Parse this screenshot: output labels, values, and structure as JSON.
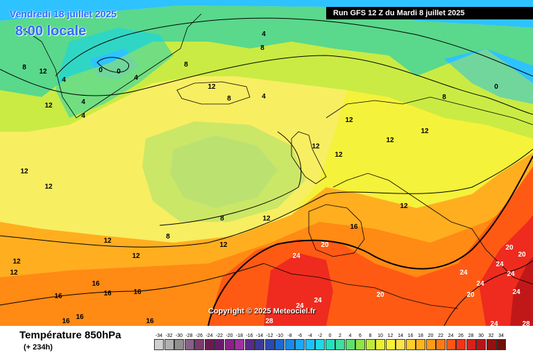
{
  "header": {
    "date": "Vendredi 18 juillet 2025",
    "time": "8:00 locale",
    "run": "Run GFS 12 Z du Mardi 8 juillet 2025"
  },
  "map": {
    "copyright": "Copyright © 2025 Meteociel.fr",
    "isotherm_labels": [
      "0",
      "0",
      "0",
      "4",
      "4",
      "4",
      "4",
      "4",
      "4",
      "8",
      "8",
      "8",
      "8",
      "8",
      "8",
      "8",
      "12",
      "12",
      "12",
      "12",
      "12",
      "12",
      "12",
      "12",
      "12",
      "12",
      "12",
      "12",
      "12",
      "12",
      "12",
      "12",
      "12",
      "16",
      "16",
      "16",
      "16",
      "16",
      "16",
      "16",
      "16",
      "20",
      "20",
      "20",
      "20",
      "20",
      "24",
      "24",
      "24",
      "24",
      "24",
      "24",
      "24",
      "24",
      "24",
      "28",
      "28"
    ],
    "fill_colors": [
      "#2ec3ff",
      "#25d8d8",
      "#3de0a6",
      "#68e06a",
      "#9ae445",
      "#c9ee3a",
      "#f2f236",
      "#fde65e",
      "#ffd22a",
      "#ffaf1e",
      "#ff8a14",
      "#ff5a14",
      "#ee2b1e",
      "#c01818"
    ]
  },
  "footer": {
    "title": "Température 850hPa",
    "subtitle": "(+ 234h)"
  },
  "legend": {
    "labels": [
      "-34",
      "-32",
      "-30",
      "-28",
      "-26",
      "-24",
      "-22",
      "-20",
      "-18",
      "-16",
      "-14",
      "-12",
      "-10",
      "-8",
      "-6",
      "-4",
      "-2",
      "0",
      "2",
      "4",
      "6",
      "8",
      "10",
      "12",
      "14",
      "16",
      "18",
      "20",
      "22",
      "24",
      "26",
      "28",
      "30",
      "32",
      "34"
    ],
    "colors": [
      "#d0d0d0",
      "#b0b0b0",
      "#909090",
      "#886088",
      "#7a3a6e",
      "#6e1a52",
      "#6a1a6a",
      "#8a208a",
      "#a030a0",
      "#5a2a8a",
      "#3a3a9a",
      "#2a4ab0",
      "#1a6ad0",
      "#1a8ae8",
      "#1aa8f8",
      "#20c0ff",
      "#20d8e8",
      "#25e0c0",
      "#3de0a0",
      "#60e070",
      "#90e448",
      "#c0ea38",
      "#e8f034",
      "#f6f236",
      "#fde24a",
      "#ffce28",
      "#ffb41e",
      "#ff9a18",
      "#ff7a14",
      "#ff5614",
      "#f0341a",
      "#d8201c",
      "#b81418",
      "#961010",
      "#701008"
    ]
  }
}
